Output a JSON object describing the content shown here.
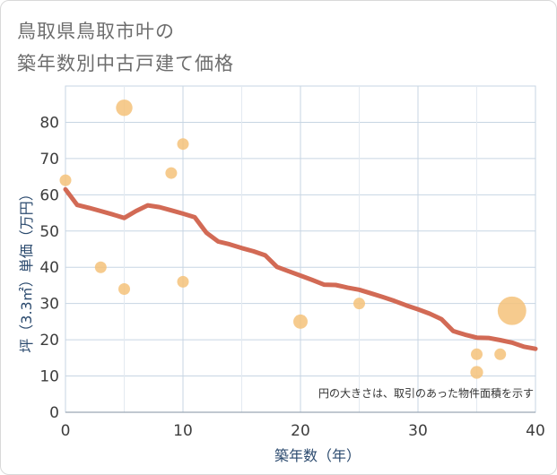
{
  "title_line1": "鳥取県鳥取市叶の",
  "title_line2": "築年数別中古戸建て価格",
  "chart_data": {
    "type": "scatter",
    "xlabel": "築年数（年）",
    "ylabel": "坪（3.3㎡）単価（万円）",
    "xlim": [
      0,
      40
    ],
    "ylim": [
      0,
      90
    ],
    "x_ticks": [
      "0",
      "10",
      "20",
      "30",
      "40"
    ],
    "y_ticks": [
      "0",
      "10",
      "20",
      "30",
      "40",
      "50",
      "60",
      "70",
      "80"
    ],
    "grid": true,
    "note": "円の大きさは、取引のあった物件面積を示す",
    "points": [
      {
        "x": 0,
        "y": 64,
        "size": 1
      },
      {
        "x": 3,
        "y": 40,
        "size": 1
      },
      {
        "x": 5,
        "y": 84,
        "size": 2
      },
      {
        "x": 5,
        "y": 34,
        "size": 1
      },
      {
        "x": 9,
        "y": 66,
        "size": 1
      },
      {
        "x": 10,
        "y": 74,
        "size": 1
      },
      {
        "x": 10,
        "y": 36,
        "size": 1
      },
      {
        "x": 20,
        "y": 25,
        "size": 1.5
      },
      {
        "x": 25,
        "y": 30,
        "size": 1
      },
      {
        "x": 35,
        "y": 16,
        "size": 1
      },
      {
        "x": 35,
        "y": 11,
        "size": 1.2
      },
      {
        "x": 37,
        "y": 16,
        "size": 1
      },
      {
        "x": 38,
        "y": 28,
        "size": 6
      }
    ],
    "trend": {
      "x": [
        0,
        1,
        2,
        3,
        4,
        5,
        6,
        7,
        8,
        9,
        10,
        11,
        12,
        13,
        14,
        15,
        16,
        17,
        18,
        19,
        20,
        21,
        22,
        23,
        24,
        25,
        26,
        27,
        28,
        29,
        30,
        31,
        32,
        33,
        34,
        35,
        36,
        37,
        38,
        39,
        40
      ],
      "y": [
        61.5,
        57.2,
        56.4,
        55.5,
        54.6,
        53.6,
        55.5,
        57.1,
        56.6,
        55.7,
        54.8,
        53.8,
        49.5,
        47.1,
        46.3,
        45.3,
        44.4,
        43.3,
        40.1,
        38.9,
        37.7,
        36.5,
        35.2,
        35.1,
        34.4,
        33.8,
        32.8,
        31.8,
        30.7,
        29.5,
        28.4,
        27.2,
        25.7,
        22.4,
        21.4,
        20.6,
        20.5,
        19.9,
        19.2,
        18.1,
        17.5
      ]
    },
    "colors": {
      "points": "#f5c27a",
      "trend": "#d26a55",
      "grid": "#c7d5e3"
    }
  }
}
